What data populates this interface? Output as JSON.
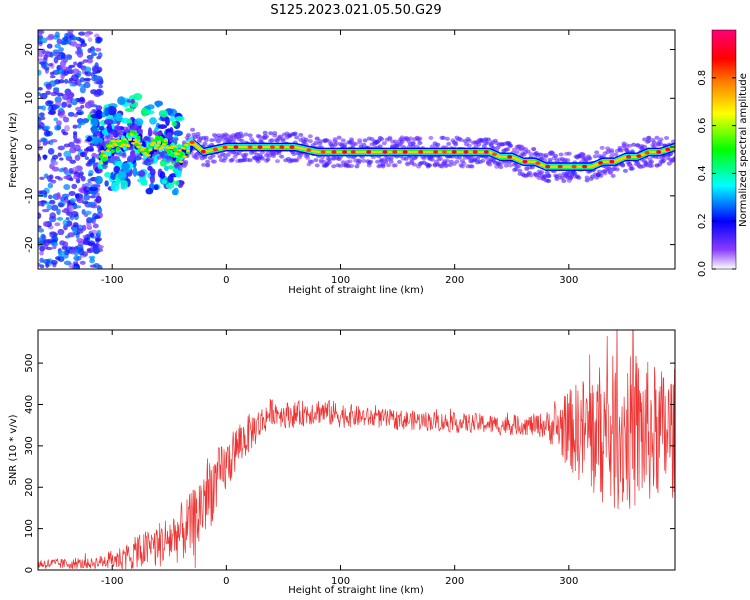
{
  "figure": {
    "title": "S125.2023.021.05.50.G29"
  },
  "chart_data": [
    {
      "type": "heatmap",
      "title": "S125.2023.021.05.50.G29",
      "xlabel": "Height of straight line (km)",
      "ylabel": "Frequency (Hz)",
      "xlim": [
        -165,
        393
      ],
      "ylim": [
        -25,
        24
      ],
      "x_ticks": [
        -100,
        0,
        100,
        200,
        300
      ],
      "y_ticks": [
        -20,
        -10,
        0,
        10,
        20
      ],
      "colorbar": {
        "label": "Normalized spectral amplitude",
        "range": [
          0,
          1
        ],
        "ticks": [
          "0.0",
          "0.2",
          "0.4",
          "0.6",
          "0.8"
        ],
        "colormap": [
          "#ffffff",
          "#6600ff",
          "#0000ff",
          "#00ffff",
          "#00ff00",
          "#ffff00",
          "#ff8000",
          "#ff0000",
          "#ff00cc"
        ]
      },
      "ridge": {
        "x": [
          -165,
          -130,
          -120,
          -110,
          -100,
          -90,
          -80,
          -70,
          -60,
          -50,
          -40,
          -30,
          -20,
          0,
          20,
          40,
          60,
          80,
          100,
          120,
          140,
          160,
          180,
          200,
          220,
          230,
          240,
          250,
          260,
          270,
          280,
          290,
          300,
          310,
          320,
          330,
          340,
          350,
          360,
          370,
          380,
          393
        ],
        "y": [
          0,
          0,
          -1,
          -2,
          0,
          1,
          2,
          -1,
          1,
          0,
          -2,
          1,
          -1,
          0,
          0,
          0,
          0,
          -1,
          -1,
          -1,
          -1,
          -1,
          -1,
          -1,
          -1,
          -1,
          -2,
          -2,
          -3,
          -3,
          -4,
          -4,
          -4,
          -4,
          -4,
          -3,
          -3,
          -2,
          -2,
          -1,
          -1,
          0
        ],
        "peak_amplitude": 1.0
      },
      "grid": false
    },
    {
      "type": "line",
      "xlabel": "Height of straight line (km)",
      "ylabel": "SNR (10 * v/v)",
      "xlim": [
        -165,
        393
      ],
      "ylim": [
        0,
        580
      ],
      "x_ticks": [
        -100,
        0,
        100,
        200,
        300
      ],
      "y_ticks": [
        0,
        100,
        200,
        300,
        400,
        500
      ],
      "color": "#ee3333",
      "envelope": {
        "x": [
          -165,
          -140,
          -120,
          -110,
          -100,
          -90,
          -80,
          -70,
          -60,
          -50,
          -40,
          -30,
          -25,
          -20,
          -15,
          -10,
          -5,
          0,
          10,
          20,
          30,
          40,
          50,
          60,
          70,
          80,
          100,
          120,
          140,
          160,
          180,
          200,
          220,
          240,
          260,
          280,
          290,
          300,
          310,
          320,
          330,
          340,
          350,
          360,
          370,
          380,
          393
        ],
        "mean": [
          15,
          15,
          15,
          20,
          25,
          30,
          40,
          50,
          60,
          75,
          90,
          110,
          130,
          170,
          190,
          210,
          230,
          250,
          300,
          330,
          355,
          385,
          375,
          375,
          380,
          385,
          375,
          370,
          365,
          362,
          360,
          355,
          355,
          350,
          350,
          350,
          345,
          340,
          335,
          330,
          330,
          330,
          330,
          330,
          330,
          330,
          330
        ],
        "noise": [
          8,
          8,
          8,
          10,
          15,
          20,
          25,
          30,
          35,
          40,
          45,
          50,
          60,
          60,
          60,
          50,
          45,
          40,
          35,
          30,
          25,
          20,
          20,
          20,
          20,
          20,
          20,
          15,
          15,
          15,
          15,
          15,
          15,
          15,
          15,
          20,
          40,
          60,
          80,
          100,
          110,
          120,
          120,
          120,
          110,
          100,
          100
        ]
      },
      "grid": false
    }
  ]
}
